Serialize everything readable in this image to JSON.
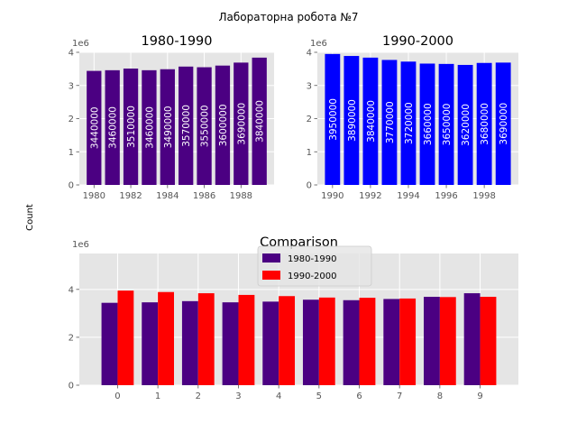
{
  "figure": {
    "suptitle": "Лабораторна робота №7",
    "ylabel": "Count"
  },
  "chart_data": [
    {
      "type": "bar",
      "title": "1980-1990",
      "offset_label": "1e6",
      "x": [
        1980,
        1981,
        1982,
        1983,
        1984,
        1985,
        1986,
        1987,
        1988,
        1989
      ],
      "values": [
        3440000,
        3460000,
        3510000,
        3460000,
        3490000,
        3570000,
        3550000,
        3600000,
        3690000,
        3840000
      ],
      "value_labels": [
        "3440000",
        "3460000",
        "3510000",
        "3460000",
        "3490000",
        "3570000",
        "3550000",
        "3600000",
        "3690000",
        "3840000"
      ],
      "xticks": [
        "1980",
        "1982",
        "1984",
        "1986",
        "1988"
      ],
      "yticks": [
        "0",
        "1",
        "2",
        "3",
        "4"
      ],
      "ylim": [
        0,
        4
      ],
      "color": "#4b0082",
      "grid": true
    },
    {
      "type": "bar",
      "title": "1990-2000",
      "offset_label": "1e6",
      "x": [
        1990,
        1991,
        1992,
        1993,
        1994,
        1995,
        1996,
        1997,
        1998,
        1999
      ],
      "values": [
        3950000,
        3890000,
        3840000,
        3770000,
        3720000,
        3660000,
        3650000,
        3620000,
        3680000,
        3690000
      ],
      "value_labels": [
        "3950000",
        "3890000",
        "3840000",
        "3770000",
        "3720000",
        "3660000",
        "3650000",
        "3620000",
        "3680000",
        "3690000"
      ],
      "xticks": [
        "1990",
        "1992",
        "1994",
        "1996",
        "1998"
      ],
      "yticks": [
        "0",
        "1",
        "2",
        "3",
        "4"
      ],
      "ylim": [
        0,
        4
      ],
      "color": "#0000ff",
      "grid": true
    },
    {
      "type": "bar",
      "title": "Comparison",
      "offset_label": "1e6",
      "categories": [
        "0",
        "1",
        "2",
        "3",
        "4",
        "5",
        "6",
        "7",
        "8",
        "9"
      ],
      "series": [
        {
          "name": "1980-1990",
          "color": "#4b0082",
          "values": [
            3440000,
            3460000,
            3510000,
            3460000,
            3490000,
            3570000,
            3550000,
            3600000,
            3690000,
            3840000
          ]
        },
        {
          "name": "1990-2000",
          "color": "#ff0000",
          "values": [
            3950000,
            3890000,
            3840000,
            3770000,
            3720000,
            3660000,
            3650000,
            3620000,
            3680000,
            3690000
          ]
        }
      ],
      "yticks": [
        "0",
        "2",
        "4"
      ],
      "ylim": [
        0,
        5.5
      ],
      "legend": "top-center",
      "grid": true
    }
  ]
}
